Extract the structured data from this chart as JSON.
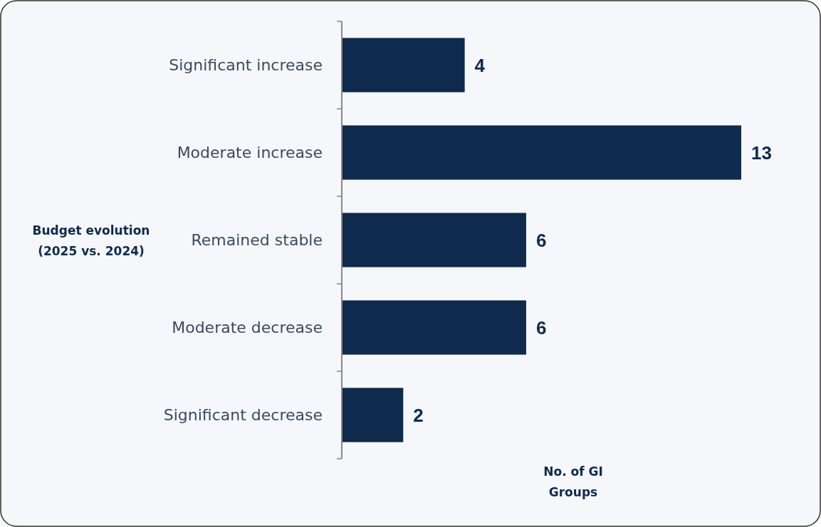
{
  "chart_data": {
    "type": "bar",
    "orientation": "horizontal",
    "categories": [
      "Significant increase",
      "Moderate increase",
      "Remained stable",
      "Moderate decrease",
      "Significant decrease"
    ],
    "values": [
      4,
      13,
      6,
      6,
      2
    ],
    "color": "#0e2a4d",
    "data_labels": true,
    "tick_labels": "y",
    "ylabel": "Budget evolution\n(2025 vs. 2024)",
    "xlabel": "No. of GI\nGroups"
  }
}
